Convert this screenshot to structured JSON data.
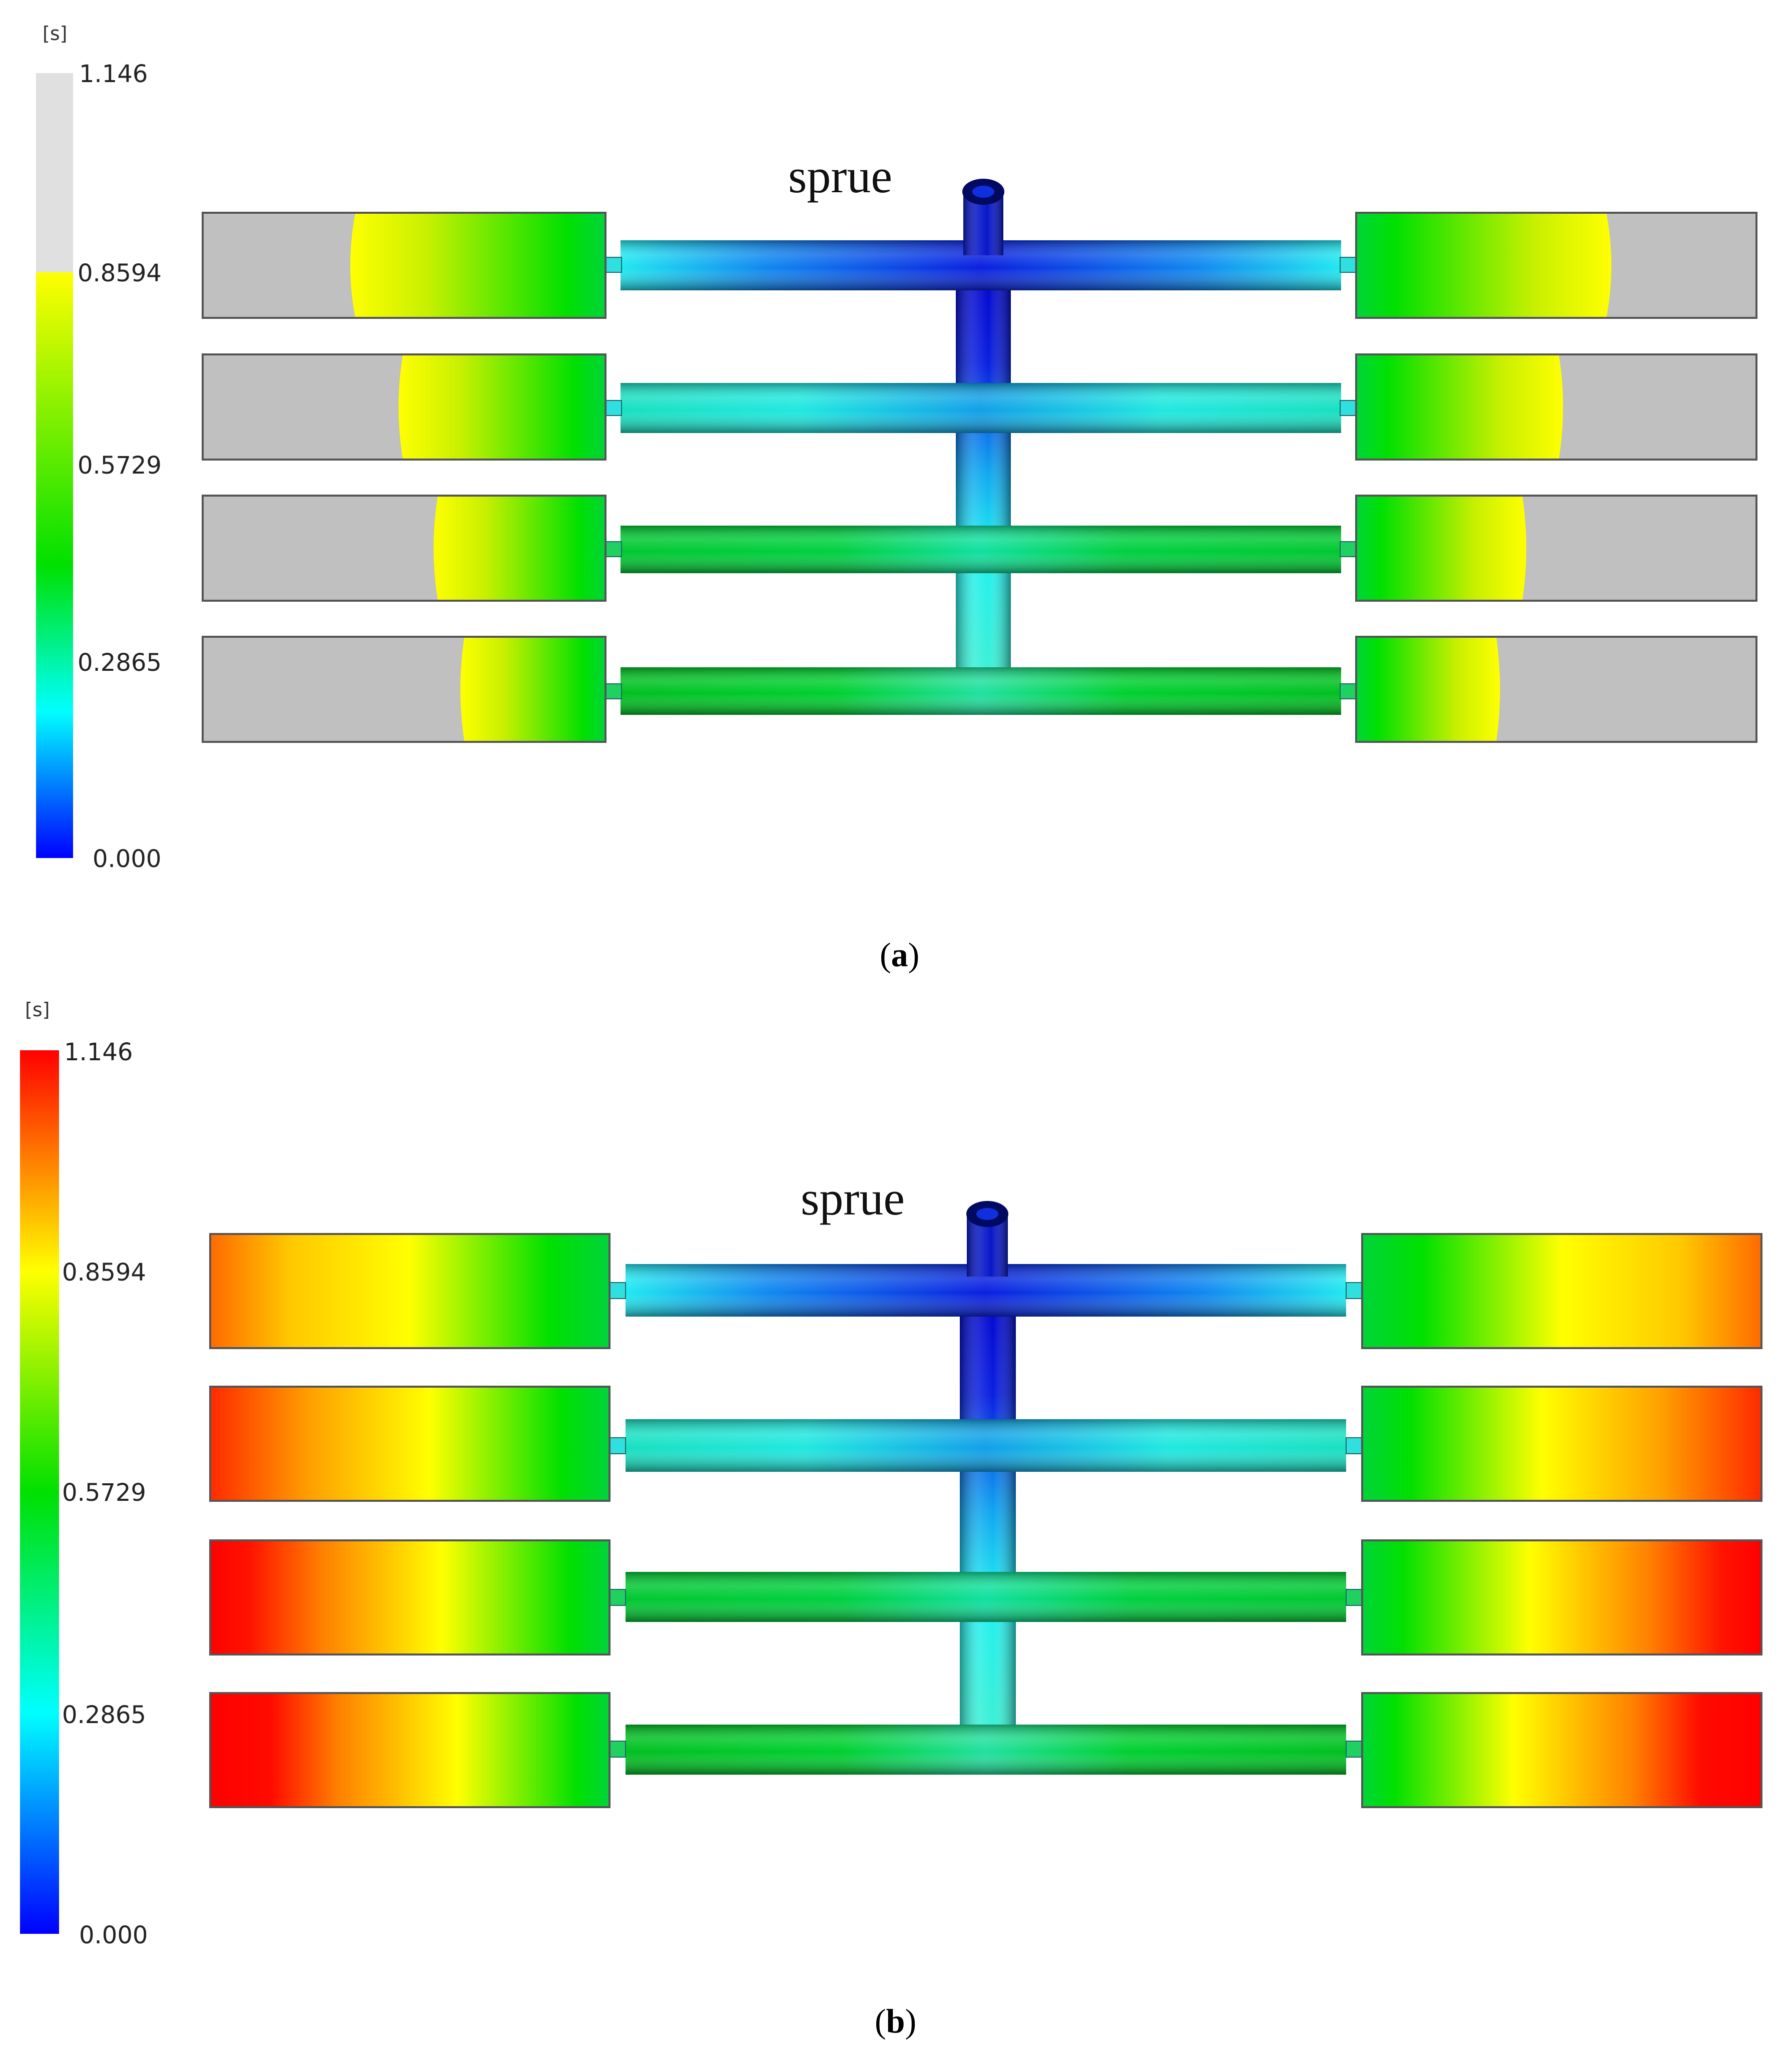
{
  "colors": {
    "blue": "#0000ff",
    "cyan": "#00ffff",
    "green": "#00e000",
    "yellow": "#ffff00",
    "red": "#ff0000",
    "unfilled_gray": "#c0c0c0",
    "unfilled_legend": "#e0e0e0"
  },
  "panels": [
    {
      "id": "a",
      "caption_open": "(",
      "caption_letter": "a",
      "caption_close": ")",
      "legend": {
        "unit": "[s]",
        "max": "1.146",
        "ticks": [
          "0.8594",
          "0.5729",
          "0.2865"
        ],
        "min": "0.000",
        "top_band": "gray"
      },
      "sprue_label": "sprue",
      "fill_state": "partial",
      "left_cavity_fill_fraction": [
        0.62,
        0.5,
        0.42,
        0.36
      ],
      "right_cavity_fill_fraction": [
        0.62,
        0.51,
        0.42,
        0.35
      ]
    },
    {
      "id": "b",
      "caption_open": "(",
      "caption_letter": "b",
      "caption_close": ")",
      "legend": {
        "unit": "[s]",
        "max": "1.146",
        "ticks": [
          "0.8594",
          "0.5729",
          "0.2865"
        ],
        "min": "0.000",
        "top_band": "red"
      },
      "sprue_label": "sprue",
      "fill_state": "complete",
      "left_cavity_fill_fraction": [
        1,
        1,
        1,
        1
      ],
      "right_cavity_fill_fraction": [
        1,
        1,
        1,
        1
      ]
    }
  ]
}
